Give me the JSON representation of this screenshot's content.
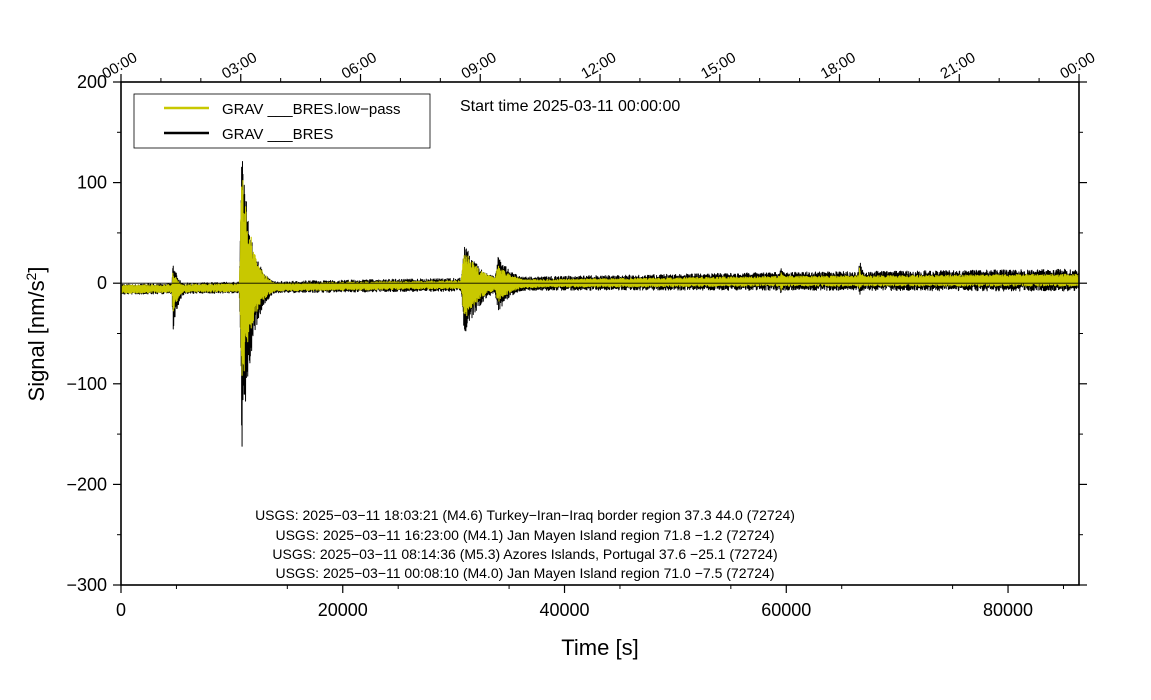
{
  "chart_data": {
    "type": "line",
    "start_time_text": "Start time 2025-03-11 00:00:00",
    "xlabel": "Time [s]",
    "ylabel": "Signal [nm/s",
    "ylabel_sup": "2",
    "ylabel_close": "]",
    "xlim": [
      0,
      86400
    ],
    "ylim": [
      -300,
      200
    ],
    "x_ticks": [
      0,
      20000,
      40000,
      60000,
      80000
    ],
    "x_tick_labels": [
      "0",
      "20000",
      "40000",
      "60000",
      "80000"
    ],
    "y_ticks": [
      200,
      100,
      0,
      -100,
      -200,
      -300
    ],
    "y_tick_labels": [
      "200",
      "100",
      "0",
      "−100",
      "−200",
      "−300"
    ],
    "top_axis_ticks": [
      0,
      10800,
      21600,
      32400,
      43200,
      54000,
      64800,
      75600,
      86400
    ],
    "top_axis_labels": [
      "00:00",
      "03:00",
      "06:00",
      "09:00",
      "12:00",
      "15:00",
      "18:00",
      "21:00",
      "00:00"
    ],
    "legend_position": "top-left",
    "series": [
      {
        "name": "GRAV ___BRES.low−pass",
        "color": "#c8c800",
        "baseline": [
          [
            0,
            -6
          ],
          [
            20000,
            -3
          ],
          [
            40000,
            0
          ],
          [
            60000,
            2
          ],
          [
            86400,
            3
          ]
        ],
        "noise": [
          [
            0,
            4
          ],
          [
            20000,
            4
          ],
          [
            40000,
            4
          ],
          [
            60000,
            5
          ],
          [
            86400,
            6
          ]
        ],
        "events": [
          {
            "t": 4700,
            "pos": 18,
            "neg": -25,
            "width": 500
          },
          {
            "t": 10900,
            "pos": 130,
            "neg": -110,
            "width": 900
          },
          {
            "t": 31000,
            "pos": 35,
            "neg": -35,
            "width": 1600
          },
          {
            "t": 34000,
            "pos": 20,
            "neg": -18,
            "width": 1500
          },
          {
            "t": 59500,
            "pos": 10,
            "neg": -10,
            "width": 400
          },
          {
            "t": 66600,
            "pos": 14,
            "neg": -8,
            "width": 400
          }
        ]
      },
      {
        "name": "GRAV ___BRES",
        "color": "#000000",
        "baseline": [
          [
            0,
            -6
          ],
          [
            20000,
            -3
          ],
          [
            40000,
            0
          ],
          [
            60000,
            2
          ],
          [
            86400,
            3
          ]
        ],
        "noise": [
          [
            0,
            5
          ],
          [
            20000,
            6
          ],
          [
            40000,
            7
          ],
          [
            60000,
            9
          ],
          [
            86400,
            11
          ]
        ],
        "events": [
          {
            "t": 4700,
            "pos": 28,
            "neg": -42,
            "width": 500
          },
          {
            "t": 10900,
            "pos": 135,
            "neg": -172,
            "width": 900
          },
          {
            "t": 31000,
            "pos": 40,
            "neg": -50,
            "width": 1600
          },
          {
            "t": 34000,
            "pos": 28,
            "neg": -28,
            "width": 1500
          },
          {
            "t": 59500,
            "pos": 17,
            "neg": -15,
            "width": 400
          },
          {
            "t": 66600,
            "pos": 22,
            "neg": -15,
            "width": 400
          }
        ]
      }
    ],
    "annotations": [
      "USGS: 2025−03−11 18:03:21 (M4.6) Turkey−Iran−Iraq border region 37.3 44.0 (72724)",
      "USGS: 2025−03−11 16:23:00 (M4.1) Jan Mayen Island region 71.8 −1.2 (72724)",
      "USGS: 2025−03−11 08:14:36 (M5.3) Azores Islands, Portugal 37.6 −25.1 (72724)",
      "USGS: 2025−03−11 00:08:10 (M4.0) Jan Mayen Island region 71.0 −7.5 (72724)"
    ]
  }
}
